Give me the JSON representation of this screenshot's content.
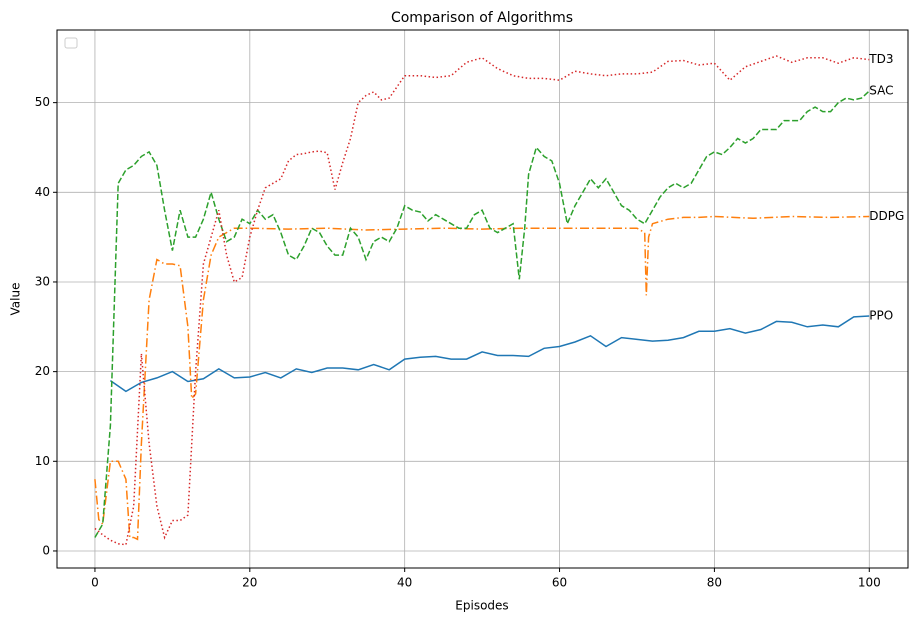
{
  "chart_data": {
    "type": "line",
    "title": "Comparison of Algorithms",
    "x_label": "Episodes",
    "y_label": "Value",
    "xlim": [
      -4.9,
      105
    ],
    "ylim": [
      -1.9,
      58.1
    ],
    "xticks": [
      0,
      20,
      40,
      60,
      80,
      100
    ],
    "yticks": [
      0,
      10,
      20,
      30,
      40,
      50
    ],
    "grid": true,
    "legend": "upper left",
    "series": [
      {
        "name": "PPO",
        "color": "#1f77b4",
        "label_color": "blue",
        "linestyle": "solid",
        "x": [
          2,
          4,
          6,
          8,
          10,
          12,
          14,
          16,
          18,
          20,
          22,
          24,
          26,
          28,
          30,
          32,
          34,
          36,
          38,
          40,
          42,
          44,
          46,
          48,
          50,
          52,
          54,
          56,
          58,
          60,
          62,
          64,
          66,
          68,
          70,
          72,
          74,
          76,
          78,
          80,
          82,
          84,
          86,
          88,
          90,
          92,
          94,
          96,
          98,
          100
        ],
        "values": [
          19,
          17.8,
          18.8,
          19.3,
          20,
          18.9,
          19.2,
          20.3,
          19.3,
          19.4,
          19.9,
          19.3,
          20.3,
          19.9,
          20.4,
          20.4,
          20.2,
          20.8,
          20.2,
          21.4,
          21.6,
          21.7,
          21.4,
          21.4,
          22.2,
          21.8,
          21.8,
          21.7,
          22.6,
          22.8,
          23.3,
          24,
          22.8,
          23.8,
          23.6,
          23.4,
          23.5,
          23.8,
          24.5,
          24.5,
          24.8,
          24.3,
          24.7,
          25.6,
          25.5,
          25,
          25.2,
          25,
          26.1,
          26.2
        ]
      },
      {
        "name": "DDPG",
        "color": "#ff7f0e",
        "label_color": "orange",
        "linestyle": "dashdot",
        "x": [
          0,
          0.5,
          1,
          2,
          3,
          4,
          4.5,
          5,
          5.5,
          6,
          7,
          8,
          9,
          10,
          11,
          12,
          12.5,
          13,
          14,
          15,
          16,
          17,
          18,
          20,
          25,
          30,
          35,
          40,
          45,
          50,
          55,
          60,
          65,
          70,
          71,
          71.2,
          71.5,
          72,
          74,
          76,
          78,
          80,
          85,
          90,
          95,
          100
        ],
        "values": [
          8,
          3.5,
          3,
          10,
          10,
          8,
          1.5,
          1.5,
          1.3,
          12,
          28,
          32.5,
          32,
          32,
          31.8,
          25,
          17,
          17.5,
          28,
          33,
          35,
          35.5,
          36,
          36,
          35.9,
          36,
          35.8,
          35.9,
          36,
          35.9,
          36,
          36,
          36,
          36,
          35.5,
          28.5,
          35,
          36.5,
          37,
          37.2,
          37.2,
          37.3,
          37.1,
          37.3,
          37.2,
          37.3
        ]
      },
      {
        "name": "SAC",
        "color": "#2ca02c",
        "label_color": "green",
        "linestyle": "dashed",
        "x": [
          0,
          1,
          2,
          3,
          4,
          5,
          6,
          7,
          8,
          9,
          10,
          11,
          12,
          13,
          14,
          15,
          16,
          17,
          18,
          19,
          20,
          21,
          22,
          23,
          24,
          25,
          26,
          27,
          28,
          29,
          30,
          31,
          32,
          33,
          34,
          35,
          36,
          37,
          38,
          39,
          40,
          41,
          42,
          43,
          44,
          45,
          46,
          47,
          48,
          49,
          50,
          51,
          52,
          53,
          54,
          54.8,
          55.5,
          56,
          57,
          58,
          59,
          60,
          61,
          62,
          63,
          64,
          65,
          66,
          67,
          68,
          69,
          70,
          71,
          72,
          73,
          74,
          75,
          76,
          77,
          78,
          79,
          80,
          81,
          82,
          83,
          84,
          85,
          86,
          87,
          88,
          89,
          90,
          91,
          92,
          93,
          94,
          95,
          96,
          97,
          98,
          99,
          100
        ],
        "values": [
          1.5,
          3,
          14,
          41,
          42.5,
          43,
          44,
          44.5,
          43,
          38,
          33.5,
          38,
          35,
          35,
          37,
          40,
          37,
          34.5,
          35,
          37,
          36.5,
          38,
          37,
          37.5,
          35.5,
          33,
          32.5,
          34,
          36,
          35.5,
          34,
          33,
          33,
          36,
          35,
          32.5,
          34.5,
          35,
          34.5,
          36,
          38.5,
          38,
          37.8,
          36.8,
          37.5,
          37,
          36.5,
          36,
          36,
          37.5,
          38,
          36,
          35.5,
          36,
          36.5,
          30.3,
          36,
          42,
          45,
          44,
          43.5,
          41,
          36.5,
          38.5,
          40,
          41.5,
          40.5,
          41.5,
          40,
          38.5,
          38,
          37,
          36.5,
          38,
          39.5,
          40.5,
          41,
          40.5,
          41,
          42.5,
          44,
          44.5,
          44.2,
          45,
          46,
          45.5,
          46,
          47,
          47,
          47,
          48,
          48,
          48,
          49,
          49.5,
          49,
          49,
          50,
          50.5,
          50.3,
          50.5,
          51.3
        ]
      },
      {
        "name": "TD3",
        "color": "#d62728",
        "label_color": "red",
        "linestyle": "dotted",
        "x": [
          0,
          1,
          2,
          3,
          4,
          5,
          6,
          7,
          8,
          9,
          10,
          11,
          12,
          13,
          14,
          15,
          16,
          17,
          18,
          19,
          20,
          21,
          22,
          23,
          24,
          25,
          26,
          27,
          28,
          29,
          30,
          31,
          32,
          33,
          34,
          35,
          36,
          37,
          38,
          40,
          42,
          44,
          46,
          48,
          50,
          52,
          54,
          56,
          58,
          60,
          62,
          64,
          66,
          68,
          70,
          72,
          74,
          76,
          78,
          80,
          82,
          84,
          86,
          88,
          90,
          92,
          94,
          96,
          98,
          100
        ],
        "values": [
          2.5,
          1.8,
          1.2,
          0.8,
          0.7,
          5,
          22,
          12,
          5,
          1.5,
          3.4,
          3.4,
          4,
          20,
          32,
          35,
          38,
          33,
          30,
          30.5,
          35,
          38,
          40.5,
          41,
          41.5,
          43.5,
          44.2,
          44.3,
          44.5,
          44.6,
          44.4,
          40.3,
          43.3,
          46,
          50,
          50.8,
          51.2,
          50.3,
          50.5,
          53,
          53,
          52.8,
          53,
          54.5,
          55,
          53.8,
          53,
          52.7,
          52.7,
          52.5,
          53.5,
          53.2,
          53,
          53.2,
          53.2,
          53.4,
          54.6,
          54.7,
          54.2,
          54.4,
          52.5,
          54,
          54.6,
          55.2,
          54.5,
          55,
          55,
          54.4,
          55,
          54.8
        ]
      }
    ]
  }
}
